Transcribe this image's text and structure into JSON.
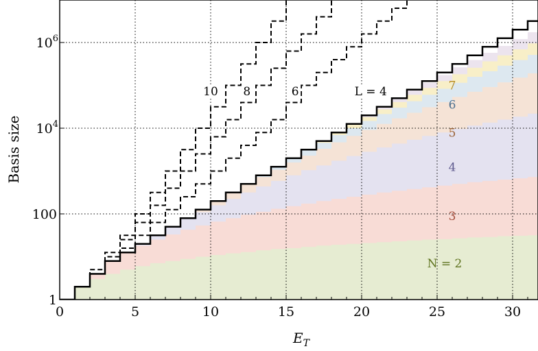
{
  "chart_data": {
    "type": "area",
    "xlabel_base": "E",
    "xlabel_sub": "T",
    "ylabel": "Basis size",
    "x_range": [
      0,
      32
    ],
    "y_range_log10": [
      0,
      6.9
    ],
    "y_scale": "log",
    "grid": true,
    "x_ticks": [
      {
        "value": 0,
        "label": "0"
      },
      {
        "value": 5,
        "label": "5"
      },
      {
        "value": 10,
        "label": "10"
      },
      {
        "value": 15,
        "label": "15"
      },
      {
        "value": 20,
        "label": "20"
      },
      {
        "value": 25,
        "label": "25"
      },
      {
        "value": 30,
        "label": "30"
      }
    ],
    "y_ticks": [
      {
        "log10": 0,
        "base": "1",
        "exp": ""
      },
      {
        "log10": 2,
        "base": "100",
        "exp": ""
      },
      {
        "log10": 4,
        "base": "10",
        "exp": "4"
      },
      {
        "log10": 6,
        "base": "10",
        "exp": "6"
      }
    ],
    "stacked_bands_log10": {
      "x": [
        0,
        1,
        2,
        3,
        4,
        5,
        6,
        7,
        8,
        9,
        10,
        11,
        12,
        13,
        14,
        15,
        16,
        17,
        18,
        19,
        20,
        21,
        22,
        23,
        24,
        25,
        26,
        27,
        28,
        29,
        30,
        31,
        32
      ],
      "series": [
        {
          "name": "N = 2",
          "color": "#e6ecd2",
          "upper": [
            0,
            0.3,
            0.48,
            0.6,
            0.7,
            0.78,
            0.85,
            0.9,
            0.95,
            1.0,
            1.04,
            1.08,
            1.11,
            1.15,
            1.18,
            1.2,
            1.23,
            1.26,
            1.28,
            1.3,
            1.32,
            1.34,
            1.36,
            1.38,
            1.4,
            1.41,
            1.43,
            1.45,
            1.46,
            1.48,
            1.49,
            1.5,
            1.52
          ]
        },
        {
          "name": "3",
          "color": "#f8dcd6",
          "upper": [
            0,
            0.3,
            0.6,
            0.9,
            1.08,
            1.26,
            1.4,
            1.52,
            1.63,
            1.73,
            1.82,
            1.9,
            1.98,
            2.05,
            2.12,
            2.18,
            2.24,
            2.3,
            2.35,
            2.4,
            2.45,
            2.5,
            2.54,
            2.58,
            2.62,
            2.66,
            2.7,
            2.74,
            2.77,
            2.8,
            2.83,
            2.86,
            2.89
          ]
        },
        {
          "name": "4",
          "color": "#e4e2f0",
          "upper": [
            0,
            0.3,
            0.6,
            0.9,
            1.1,
            1.3,
            1.5,
            1.7,
            1.88,
            2.04,
            2.2,
            2.35,
            2.5,
            2.64,
            2.77,
            2.9,
            3.02,
            3.13,
            3.24,
            3.35,
            3.45,
            3.55,
            3.64,
            3.73,
            3.82,
            3.9,
            3.98,
            4.06,
            4.13,
            4.2,
            4.27,
            4.34,
            4.4
          ]
        },
        {
          "name": "5",
          "color": "#f5e3d6",
          "upper": [
            0,
            0.3,
            0.6,
            0.9,
            1.1,
            1.3,
            1.5,
            1.7,
            1.9,
            2.1,
            2.3,
            2.5,
            2.68,
            2.86,
            3.03,
            3.2,
            3.36,
            3.52,
            3.67,
            3.82,
            3.96,
            4.1,
            4.23,
            4.36,
            4.49,
            4.61,
            4.73,
            4.85,
            4.96,
            5.07,
            5.18,
            5.28,
            5.38
          ]
        },
        {
          "name": "6",
          "color": "#dde8f0",
          "upper": [
            0,
            0.3,
            0.6,
            0.9,
            1.1,
            1.3,
            1.5,
            1.7,
            1.9,
            2.1,
            2.3,
            2.5,
            2.7,
            2.9,
            3.1,
            3.3,
            3.48,
            3.66,
            3.84,
            4.0,
            4.17,
            4.33,
            4.48,
            4.63,
            4.78,
            4.92,
            5.06,
            5.2,
            5.33,
            5.46,
            5.59,
            5.71,
            5.83
          ]
        },
        {
          "name": "7",
          "color": "#f8efc8",
          "upper": [
            0,
            0.3,
            0.6,
            0.9,
            1.1,
            1.3,
            1.5,
            1.7,
            1.9,
            2.1,
            2.3,
            2.5,
            2.7,
            2.9,
            3.1,
            3.3,
            3.5,
            3.7,
            3.9,
            4.08,
            4.26,
            4.44,
            4.61,
            4.78,
            4.94,
            5.1,
            5.26,
            5.41,
            5.56,
            5.7,
            5.84,
            5.98,
            6.11
          ]
        },
        {
          "name": "",
          "color": "#ece4ee",
          "upper": [
            0,
            0.3,
            0.6,
            0.9,
            1.1,
            1.3,
            1.5,
            1.7,
            1.9,
            2.1,
            2.3,
            2.5,
            2.7,
            2.9,
            3.1,
            3.3,
            3.5,
            3.7,
            3.9,
            4.1,
            4.3,
            4.5,
            4.7,
            4.88,
            5.06,
            5.24,
            5.42,
            5.59,
            5.76,
            5.92,
            6.08,
            6.24,
            6.4
          ]
        }
      ]
    },
    "step_lines_log10": [
      {
        "name": "L = 4",
        "style": "solid",
        "x": [
          0,
          1,
          2,
          3,
          4,
          5,
          6,
          7,
          8,
          9,
          10,
          11,
          12,
          13,
          14,
          15,
          16,
          17,
          18,
          19,
          20,
          21,
          22,
          23,
          24,
          25,
          26,
          27,
          28,
          29,
          30,
          31,
          32
        ],
        "y": [
          0,
          0.3,
          0.6,
          0.9,
          1.1,
          1.3,
          1.5,
          1.7,
          1.9,
          2.1,
          2.3,
          2.5,
          2.7,
          2.9,
          3.1,
          3.3,
          3.5,
          3.7,
          3.9,
          4.1,
          4.3,
          4.5,
          4.7,
          4.9,
          5.1,
          5.3,
          5.5,
          5.7,
          5.9,
          6.1,
          6.3,
          6.5,
          6.7
        ]
      },
      {
        "name": "6",
        "style": "dashed",
        "x": [
          0,
          1,
          2,
          3,
          4,
          5,
          6,
          7,
          8,
          9,
          10,
          11,
          12,
          13,
          14,
          15,
          16,
          17,
          18,
          19,
          20,
          21,
          22,
          23
        ],
        "y": [
          0,
          0.3,
          0.6,
          0.9,
          1.2,
          1.5,
          1.8,
          2.1,
          2.4,
          2.7,
          3.0,
          3.3,
          3.6,
          3.9,
          4.2,
          4.6,
          5.0,
          5.3,
          5.6,
          5.9,
          6.2,
          6.5,
          6.8,
          7.1
        ]
      },
      {
        "name": "8",
        "style": "dashed",
        "x": [
          0,
          1,
          2,
          3,
          4,
          5,
          6,
          7,
          8,
          9,
          10,
          11,
          12,
          13,
          14,
          15,
          16,
          17,
          18
        ],
        "y": [
          0,
          0.3,
          0.6,
          1.0,
          1.4,
          1.8,
          2.2,
          2.6,
          3.0,
          3.4,
          3.8,
          4.2,
          4.6,
          5.0,
          5.4,
          5.8,
          6.2,
          6.6,
          7.0
        ]
      },
      {
        "name": "10",
        "style": "dashed",
        "x": [
          0,
          1,
          2,
          3,
          4,
          5,
          6,
          7,
          8,
          9,
          10,
          11,
          12,
          13,
          14,
          15
        ],
        "y": [
          0,
          0.3,
          0.7,
          1.1,
          1.5,
          2.0,
          2.5,
          3.0,
          3.5,
          4.0,
          4.5,
          5.0,
          5.5,
          6.0,
          6.5,
          7.0
        ]
      }
    ],
    "line_labels": [
      {
        "text": "10",
        "x": 10.0,
        "log10": 4.8
      },
      {
        "text": "8",
        "x": 12.4,
        "log10": 4.8
      },
      {
        "text": "6",
        "x": 15.6,
        "log10": 4.8
      },
      {
        "text": "L = 4",
        "x": 20.6,
        "log10": 4.8
      }
    ],
    "band_labels": [
      {
        "text": "7",
        "x": 26.0,
        "log10": 5.0,
        "color": "#b58a1f"
      },
      {
        "text": "6",
        "x": 26.0,
        "log10": 4.55,
        "color": "#4b6f8f"
      },
      {
        "text": "5",
        "x": 26.0,
        "log10": 3.9,
        "color": "#9a6236"
      },
      {
        "text": "4",
        "x": 26.0,
        "log10": 3.1,
        "color": "#5e5a8e"
      },
      {
        "text": "3",
        "x": 26.0,
        "log10": 1.95,
        "color": "#a24c3a"
      },
      {
        "text": "N = 2",
        "x": 25.5,
        "log10": 0.85,
        "color": "#5f7420"
      }
    ]
  }
}
